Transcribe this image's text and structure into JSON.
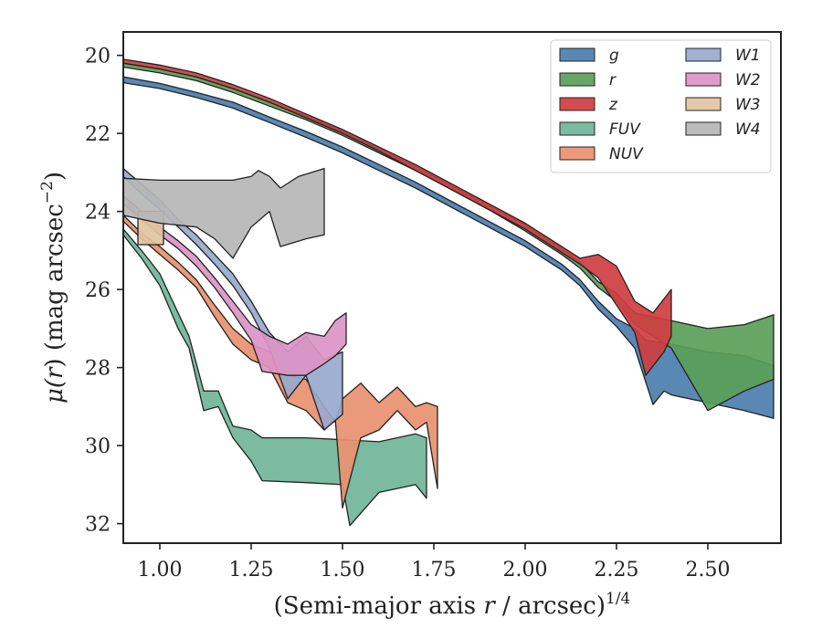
{
  "chart_data": {
    "type": "area",
    "title": "",
    "xlabel_main": "(Semi-major axis ",
    "xlabel_var": "r",
    "xlabel_rest": " / arcsec)",
    "xlabel_sup": "1/4",
    "ylabel_main": "μ(",
    "ylabel_var": "r",
    "ylabel_rest": ") (mag arcsec",
    "ylabel_sup": "−2",
    "ylabel_end": ")",
    "xlim": [
      0.9,
      2.7
    ],
    "ylim": [
      32.5,
      19.4
    ],
    "y_inverted": true,
    "xticks": [
      1.0,
      1.25,
      1.5,
      1.75,
      2.0,
      2.25,
      2.5
    ],
    "xtick_labels": [
      "1.00",
      "1.25",
      "1.50",
      "1.75",
      "2.00",
      "2.25",
      "2.50"
    ],
    "yticks": [
      20,
      22,
      24,
      26,
      28,
      30,
      32
    ],
    "ytick_labels": [
      "20",
      "22",
      "24",
      "26",
      "28",
      "30",
      "32"
    ],
    "grid": false,
    "legend_position": "top-right",
    "legend_columns": 2,
    "series": [
      {
        "name": "g",
        "color": "#4c7eae",
        "upper": [
          [
            0.9,
            20.55
          ],
          [
            1.0,
            20.72
          ],
          [
            1.1,
            20.95
          ],
          [
            1.2,
            21.2
          ],
          [
            1.3,
            21.58
          ],
          [
            1.4,
            21.95
          ],
          [
            1.5,
            22.35
          ],
          [
            1.6,
            22.8
          ],
          [
            1.7,
            23.25
          ],
          [
            1.8,
            23.75
          ],
          [
            1.9,
            24.25
          ],
          [
            2.0,
            24.75
          ],
          [
            2.1,
            25.35
          ],
          [
            2.15,
            25.75
          ],
          [
            2.2,
            26.3
          ],
          [
            2.25,
            26.75
          ],
          [
            2.3,
            27.0
          ],
          [
            2.33,
            27.3
          ],
          [
            2.4,
            27.4
          ],
          [
            2.5,
            27.6
          ],
          [
            2.6,
            27.7
          ],
          [
            2.68,
            27.95
          ]
        ],
        "lower": [
          [
            0.9,
            20.7
          ],
          [
            1.0,
            20.85
          ],
          [
            1.1,
            21.08
          ],
          [
            1.2,
            21.35
          ],
          [
            1.3,
            21.72
          ],
          [
            1.4,
            22.1
          ],
          [
            1.5,
            22.5
          ],
          [
            1.6,
            22.95
          ],
          [
            1.7,
            23.4
          ],
          [
            1.8,
            23.9
          ],
          [
            1.9,
            24.4
          ],
          [
            2.0,
            24.9
          ],
          [
            2.1,
            25.5
          ],
          [
            2.15,
            25.9
          ],
          [
            2.2,
            26.5
          ],
          [
            2.25,
            26.95
          ],
          [
            2.3,
            27.5
          ],
          [
            2.35,
            28.95
          ],
          [
            2.38,
            28.6
          ],
          [
            2.4,
            28.7
          ],
          [
            2.5,
            28.9
          ],
          [
            2.6,
            29.1
          ],
          [
            2.68,
            29.3
          ]
        ]
      },
      {
        "name": "r",
        "color": "#5a9e58",
        "upper": [
          [
            0.9,
            20.2
          ],
          [
            1.0,
            20.35
          ],
          [
            1.1,
            20.55
          ],
          [
            1.2,
            20.85
          ],
          [
            1.3,
            21.2
          ],
          [
            1.4,
            21.55
          ],
          [
            1.5,
            21.95
          ],
          [
            1.6,
            22.4
          ],
          [
            1.7,
            22.85
          ],
          [
            1.8,
            23.35
          ],
          [
            1.9,
            23.85
          ],
          [
            2.0,
            24.35
          ],
          [
            2.1,
            24.95
          ],
          [
            2.15,
            25.3
          ],
          [
            2.2,
            25.8
          ],
          [
            2.25,
            26.1
          ],
          [
            2.3,
            26.6
          ],
          [
            2.4,
            26.8
          ],
          [
            2.5,
            27.0
          ],
          [
            2.6,
            26.9
          ],
          [
            2.68,
            26.65
          ]
        ],
        "lower": [
          [
            0.9,
            20.3
          ],
          [
            1.0,
            20.45
          ],
          [
            1.1,
            20.65
          ],
          [
            1.2,
            20.95
          ],
          [
            1.3,
            21.3
          ],
          [
            1.4,
            21.65
          ],
          [
            1.5,
            22.05
          ],
          [
            1.6,
            22.5
          ],
          [
            1.7,
            22.95
          ],
          [
            1.8,
            23.45
          ],
          [
            1.9,
            23.95
          ],
          [
            2.0,
            24.5
          ],
          [
            2.1,
            25.1
          ],
          [
            2.15,
            25.45
          ],
          [
            2.2,
            25.95
          ],
          [
            2.25,
            26.3
          ],
          [
            2.3,
            26.9
          ],
          [
            2.4,
            27.5
          ],
          [
            2.5,
            29.1
          ],
          [
            2.6,
            28.6
          ],
          [
            2.68,
            28.3
          ]
        ]
      },
      {
        "name": "z",
        "color": "#cf3d40",
        "upper": [
          [
            0.9,
            20.1
          ],
          [
            1.0,
            20.25
          ],
          [
            1.1,
            20.45
          ],
          [
            1.2,
            20.75
          ],
          [
            1.3,
            21.1
          ],
          [
            1.4,
            21.5
          ],
          [
            1.5,
            21.9
          ],
          [
            1.6,
            22.35
          ],
          [
            1.7,
            22.8
          ],
          [
            1.8,
            23.3
          ],
          [
            1.9,
            23.8
          ],
          [
            2.0,
            24.3
          ],
          [
            2.1,
            24.9
          ],
          [
            2.15,
            25.2
          ],
          [
            2.2,
            25.1
          ],
          [
            2.25,
            25.4
          ],
          [
            2.3,
            26.3
          ],
          [
            2.35,
            26.6
          ],
          [
            2.4,
            26.0
          ]
        ],
        "lower": [
          [
            0.9,
            20.2
          ],
          [
            1.0,
            20.35
          ],
          [
            1.1,
            20.55
          ],
          [
            1.2,
            20.85
          ],
          [
            1.3,
            21.2
          ],
          [
            1.4,
            21.6
          ],
          [
            1.5,
            22.0
          ],
          [
            1.6,
            22.45
          ],
          [
            1.7,
            22.95
          ],
          [
            1.8,
            23.45
          ],
          [
            1.9,
            23.95
          ],
          [
            2.0,
            24.45
          ],
          [
            2.1,
            25.05
          ],
          [
            2.15,
            25.35
          ],
          [
            2.2,
            25.7
          ],
          [
            2.25,
            26.4
          ],
          [
            2.3,
            27.1
          ],
          [
            2.33,
            28.2
          ],
          [
            2.38,
            27.6
          ],
          [
            2.4,
            27.2
          ]
        ]
      },
      {
        "name": "FUV",
        "color": "#6fb59a",
        "upper": [
          [
            0.9,
            24.45
          ],
          [
            0.95,
            25.0
          ],
          [
            1.0,
            25.6
          ],
          [
            1.05,
            26.6
          ],
          [
            1.08,
            27.2
          ],
          [
            1.12,
            28.6
          ],
          [
            1.16,
            28.6
          ],
          [
            1.2,
            29.5
          ],
          [
            1.25,
            29.6
          ],
          [
            1.28,
            29.8
          ],
          [
            1.4,
            29.8
          ],
          [
            1.5,
            29.85
          ],
          [
            1.6,
            29.9
          ],
          [
            1.7,
            29.7
          ],
          [
            1.73,
            29.8
          ]
        ],
        "lower": [
          [
            0.9,
            24.6
          ],
          [
            0.95,
            25.2
          ],
          [
            1.0,
            25.9
          ],
          [
            1.05,
            27.0
          ],
          [
            1.08,
            27.5
          ],
          [
            1.12,
            29.1
          ],
          [
            1.16,
            29.0
          ],
          [
            1.2,
            29.8
          ],
          [
            1.25,
            30.4
          ],
          [
            1.28,
            30.9
          ],
          [
            1.4,
            30.95
          ],
          [
            1.5,
            31.0
          ],
          [
            1.52,
            32.05
          ],
          [
            1.6,
            31.2
          ],
          [
            1.7,
            31.0
          ],
          [
            1.73,
            31.35
          ]
        ]
      },
      {
        "name": "NUV",
        "color": "#e8916f",
        "upper": [
          [
            0.9,
            24.1
          ],
          [
            0.95,
            24.55
          ],
          [
            1.0,
            24.9
          ],
          [
            1.05,
            25.3
          ],
          [
            1.1,
            25.75
          ],
          [
            1.15,
            26.4
          ],
          [
            1.2,
            27.0
          ],
          [
            1.25,
            27.4
          ],
          [
            1.3,
            27.6
          ],
          [
            1.35,
            28.2
          ],
          [
            1.4,
            28.3
          ],
          [
            1.45,
            29.0
          ],
          [
            1.48,
            29.4
          ],
          [
            1.5,
            28.8
          ],
          [
            1.55,
            28.4
          ],
          [
            1.6,
            28.9
          ],
          [
            1.65,
            28.5
          ],
          [
            1.7,
            29.0
          ],
          [
            1.73,
            28.9
          ],
          [
            1.76,
            29.0
          ]
        ],
        "lower": [
          [
            0.9,
            24.25
          ],
          [
            0.95,
            24.7
          ],
          [
            1.0,
            25.1
          ],
          [
            1.05,
            25.5
          ],
          [
            1.1,
            25.95
          ],
          [
            1.15,
            26.7
          ],
          [
            1.2,
            27.4
          ],
          [
            1.25,
            27.8
          ],
          [
            1.3,
            28.0
          ],
          [
            1.35,
            28.9
          ],
          [
            1.4,
            29.1
          ],
          [
            1.45,
            29.6
          ],
          [
            1.48,
            29.3
          ],
          [
            1.5,
            31.6
          ],
          [
            1.55,
            29.8
          ],
          [
            1.6,
            29.6
          ],
          [
            1.65,
            29.1
          ],
          [
            1.7,
            29.6
          ],
          [
            1.73,
            29.4
          ],
          [
            1.76,
            31.1
          ]
        ]
      },
      {
        "name": "W1",
        "color": "#98a9cd",
        "upper": [
          [
            0.9,
            22.9
          ],
          [
            0.95,
            23.3
          ],
          [
            1.0,
            23.7
          ],
          [
            1.05,
            24.2
          ],
          [
            1.1,
            24.6
          ],
          [
            1.15,
            25.1
          ],
          [
            1.2,
            25.6
          ],
          [
            1.25,
            26.3
          ],
          [
            1.3,
            27.1
          ],
          [
            1.35,
            27.6
          ],
          [
            1.4,
            27.2
          ],
          [
            1.45,
            27.8
          ],
          [
            1.5,
            27.6
          ]
        ],
        "lower": [
          [
            0.9,
            23.1
          ],
          [
            0.95,
            23.55
          ],
          [
            1.0,
            23.95
          ],
          [
            1.05,
            24.4
          ],
          [
            1.1,
            24.85
          ],
          [
            1.15,
            25.35
          ],
          [
            1.2,
            25.9
          ],
          [
            1.25,
            26.6
          ],
          [
            1.3,
            27.5
          ],
          [
            1.35,
            28.8
          ],
          [
            1.4,
            28.2
          ],
          [
            1.45,
            29.6
          ],
          [
            1.5,
            29.2
          ]
        ]
      },
      {
        "name": "W2",
        "color": "#dc94c6",
        "upper": [
          [
            0.9,
            23.6
          ],
          [
            0.95,
            24.0
          ],
          [
            1.0,
            24.4
          ],
          [
            1.05,
            24.75
          ],
          [
            1.1,
            25.15
          ],
          [
            1.15,
            25.7
          ],
          [
            1.2,
            26.3
          ],
          [
            1.25,
            26.9
          ],
          [
            1.3,
            27.2
          ],
          [
            1.35,
            27.4
          ],
          [
            1.4,
            27.1
          ],
          [
            1.45,
            27.2
          ],
          [
            1.48,
            26.8
          ],
          [
            1.51,
            26.6
          ]
        ],
        "lower": [
          [
            0.9,
            23.8
          ],
          [
            0.95,
            24.2
          ],
          [
            1.0,
            24.6
          ],
          [
            1.05,
            24.95
          ],
          [
            1.1,
            25.4
          ],
          [
            1.15,
            25.95
          ],
          [
            1.2,
            26.6
          ],
          [
            1.25,
            27.3
          ],
          [
            1.28,
            28.1
          ],
          [
            1.35,
            28.2
          ],
          [
            1.4,
            28.2
          ],
          [
            1.45,
            27.9
          ],
          [
            1.48,
            27.7
          ],
          [
            1.51,
            27.4
          ]
        ]
      },
      {
        "name": "W3",
        "color": "#e2c49e",
        "upper": [
          [
            0.94,
            24.0
          ],
          [
            1.01,
            24.0
          ]
        ],
        "lower": [
          [
            0.94,
            24.85
          ],
          [
            1.01,
            24.85
          ]
        ]
      },
      {
        "name": "W4",
        "color": "#b6b6b6",
        "upper": [
          [
            0.9,
            23.15
          ],
          [
            1.0,
            23.2
          ],
          [
            1.1,
            23.2
          ],
          [
            1.2,
            23.2
          ],
          [
            1.25,
            23.1
          ],
          [
            1.27,
            22.95
          ],
          [
            1.3,
            23.1
          ],
          [
            1.33,
            23.4
          ],
          [
            1.38,
            23.1
          ],
          [
            1.45,
            22.9
          ]
        ],
        "lower": [
          [
            0.9,
            24.1
          ],
          [
            1.0,
            24.3
          ],
          [
            1.1,
            24.4
          ],
          [
            1.15,
            24.7
          ],
          [
            1.2,
            25.2
          ],
          [
            1.25,
            24.4
          ],
          [
            1.3,
            24.0
          ],
          [
            1.33,
            24.9
          ],
          [
            1.4,
            24.7
          ],
          [
            1.45,
            24.6
          ]
        ]
      }
    ],
    "legend": [
      {
        "label": "g",
        "series": "g"
      },
      {
        "label": "r",
        "series": "r"
      },
      {
        "label": "z",
        "series": "z"
      },
      {
        "label": "FUV",
        "series": "FUV"
      },
      {
        "label": "NUV",
        "series": "NUV"
      },
      {
        "label": "W1",
        "series": "W1"
      },
      {
        "label": "W2",
        "series": "W2"
      },
      {
        "label": "W3",
        "series": "W3"
      },
      {
        "label": "W4",
        "series": "W4"
      }
    ]
  }
}
